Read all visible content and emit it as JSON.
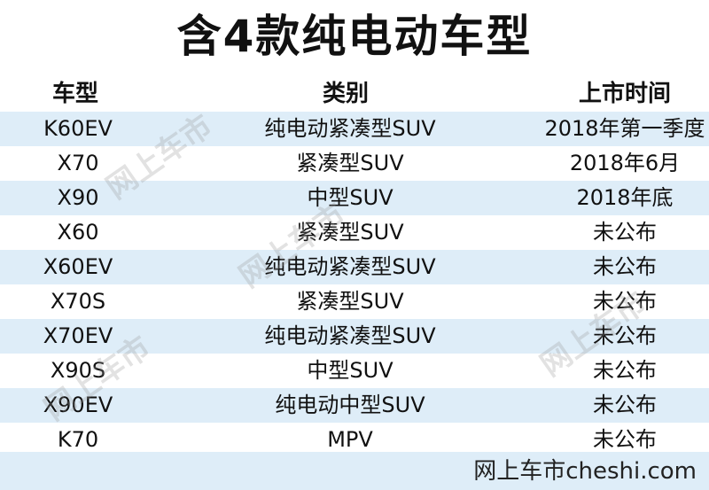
{
  "title": "含4款纯电动车型",
  "headers": [
    "车型",
    "类别",
    "上市时间"
  ],
  "rows": [
    {
      "model": "K60EV",
      "category": "纯电动紧凑型SUV",
      "launch": "2018年第一季度"
    },
    {
      "model": "X70",
      "category": "紧凑型SUV",
      "launch": "2018年6月"
    },
    {
      "model": "X90",
      "category": "中型SUV",
      "launch": "2018年底"
    },
    {
      "model": "X60",
      "category": "紧凑型SUV",
      "launch": "未公布"
    },
    {
      "model": "X60EV",
      "category": "纯电动紧凑型SUV",
      "launch": "未公布"
    },
    {
      "model": "X70S",
      "category": "紧凑型SUV",
      "launch": "未公布"
    },
    {
      "model": "X70EV",
      "category": "纯电动紧凑型SUV",
      "launch": "未公布"
    },
    {
      "model": "X90S",
      "category": "中型SUV",
      "launch": "未公布"
    },
    {
      "model": "X90EV",
      "category": "纯电动中型SUV",
      "launch": "未公布"
    },
    {
      "model": "K70",
      "category": "MPV",
      "launch": "未公布"
    }
  ],
  "source": "网上车市cheshi.com",
  "watermark": "网上车市",
  "colors": {
    "stripe": "#deedf8",
    "text": "#111111"
  }
}
